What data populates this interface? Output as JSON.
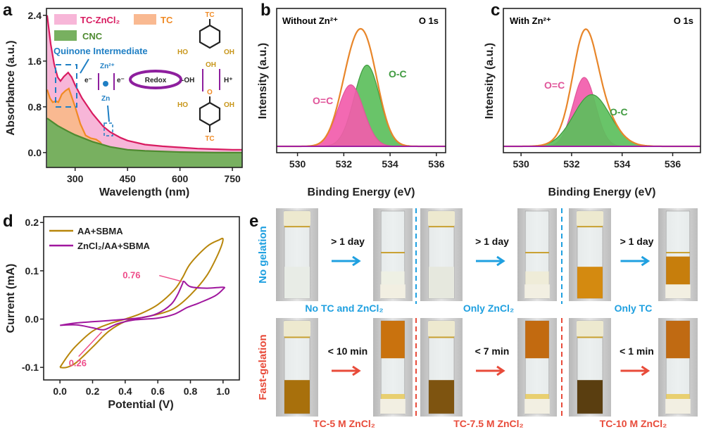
{
  "panel_labels": [
    "a",
    "b",
    "c",
    "d",
    "e"
  ],
  "chart_data": [
    {
      "panel": "a",
      "type": "area",
      "xlabel": "Wavelength (nm)",
      "ylabel": "Absorbance (a.u.)",
      "xlim": [
        218,
        778
      ],
      "ylim": [
        -0.26,
        2.52
      ],
      "xticks": [
        300,
        450,
        600,
        750
      ],
      "yticks": [
        0.0,
        0.8,
        1.6,
        2.4
      ],
      "ytick_labels": [
        "0.0",
        "0.8",
        "1.6",
        "2.4"
      ],
      "legend": "top-left",
      "series": [
        {
          "name": "TC-ZnCl₂",
          "line_color": "#d81b60",
          "fill_color": "#f7b6d8",
          "x": [
            220,
            230,
            240,
            250,
            258,
            268,
            280,
            290,
            300,
            320,
            350,
            380,
            400,
            430,
            450,
            500,
            550,
            600,
            650,
            700,
            750,
            778
          ],
          "y": [
            2.4,
            1.9,
            1.55,
            1.32,
            1.25,
            1.33,
            1.4,
            1.32,
            1.18,
            0.95,
            0.68,
            0.46,
            0.36,
            0.26,
            0.21,
            0.14,
            0.11,
            0.09,
            0.07,
            0.06,
            0.05,
            0.05
          ]
        },
        {
          "name": "TC",
          "line_color": "#f08a24",
          "fill_color": "#f9b991",
          "x": [
            220,
            228,
            236,
            245,
            252,
            262,
            272,
            282,
            290,
            300,
            315,
            330,
            345,
            360,
            372,
            385,
            395
          ],
          "y": [
            1.1,
            0.95,
            0.88,
            0.9,
            0.88,
            1.02,
            1.08,
            1.12,
            0.98,
            0.8,
            0.5,
            0.3,
            0.25,
            0.23,
            0.18,
            0.06,
            0.0
          ]
        },
        {
          "name": "CNC",
          "line_color": "#4e8a30",
          "fill_color": "#78b060",
          "x": [
            220,
            250,
            280,
            300,
            350,
            400,
            450,
            500,
            600,
            700,
            778
          ],
          "y": [
            0.6,
            0.47,
            0.37,
            0.31,
            0.19,
            0.1,
            0.05,
            0.03,
            0.01,
            0.0,
            0.0
          ]
        }
      ],
      "annotations": {
        "quinone": "Quinone Intermediate",
        "quinone_color": "#1f7fc4",
        "inset": {
          "tc_top": "TC",
          "ho_top": "HO",
          "oh_top_r": "OH",
          "oh_top_b": "OH",
          "e1": "e⁻",
          "zn2": "Zn²⁺",
          "zn": "Zn",
          "e2": "e⁻",
          "redox": "Redox",
          "oh": "-OH",
          "h": "H⁺",
          "o": "O",
          "ho_bot": "HO",
          "oh_bot": "OH",
          "tc_bot": "TC"
        }
      }
    },
    {
      "panel": "b",
      "type": "area",
      "title": "Without Zn²⁺",
      "corner_label": "O 1s",
      "xlabel": "Binding Energy (eV)",
      "ylabel": "Intensity (a.u.)",
      "xlim": [
        529.1,
        536.4
      ],
      "xticks": [
        530,
        532,
        534,
        536
      ],
      "peaks": [
        {
          "name": "O=C",
          "center_eV": 532.3,
          "relative_height": 0.5,
          "fwhm_eV": 1.3,
          "line_color": "#e0559a",
          "fill_color": "#f25cab"
        },
        {
          "name": "O-C",
          "center_eV": 533.0,
          "relative_height": 0.66,
          "fwhm_eV": 1.3,
          "line_color": "#3f9a3f",
          "fill_color": "#5cbf5c"
        }
      ],
      "envelope_color": "#e8862a",
      "baseline_color": "#a020a0"
    },
    {
      "panel": "c",
      "type": "area",
      "title": "With Zn²⁺",
      "corner_label": "O 1s",
      "xlabel": "Binding Energy (eV)",
      "ylabel": "Intensity (a.u.)",
      "xlim": [
        529.3,
        537.1
      ],
      "xticks": [
        530,
        532,
        534,
        536
      ],
      "peaks": [
        {
          "name": "O=C",
          "center_eV": 532.5,
          "relative_height": 0.56,
          "fwhm_eV": 1.05,
          "line_color": "#e0559a",
          "fill_color": "#f25cab"
        },
        {
          "name": "O-C",
          "center_eV": 532.8,
          "relative_height": 0.42,
          "fwhm_eV": 1.7,
          "line_color": "#3f9a3f",
          "fill_color": "#5cbf5c"
        }
      ],
      "envelope_color": "#e8862a",
      "baseline_color": "#a020a0"
    },
    {
      "panel": "d",
      "type": "line",
      "xlabel": "Potential (V)",
      "ylabel": "Current (mA)",
      "xlim": [
        -0.1,
        1.1
      ],
      "ylim": [
        -0.126,
        0.212
      ],
      "xticks": [
        0.0,
        0.2,
        0.4,
        0.6,
        0.8,
        1.0
      ],
      "xtick_labels": [
        "0.0",
        "0.2",
        "0.4",
        "0.6",
        "0.8",
        "1.0"
      ],
      "yticks": [
        -0.1,
        0.0,
        0.1,
        0.2
      ],
      "ytick_labels": [
        "-0.1",
        "0.0",
        "0.1",
        "0.2"
      ],
      "legend": "top-left",
      "series": [
        {
          "name": "AA+SBMA",
          "color": "#b8860b",
          "x": [
            0.0,
            0.05,
            0.1,
            0.2,
            0.3,
            0.4,
            0.5,
            0.6,
            0.7,
            0.75,
            0.8,
            0.9,
            0.97,
            1.0,
            0.97,
            0.9,
            0.8,
            0.7,
            0.6,
            0.5,
            0.4,
            0.3,
            0.2,
            0.1,
            0.04,
            0.0
          ],
          "y": [
            -0.1,
            -0.075,
            -0.055,
            -0.025,
            -0.01,
            0.0,
            0.012,
            0.03,
            0.06,
            0.085,
            0.115,
            0.15,
            0.163,
            0.165,
            0.135,
            0.09,
            0.05,
            0.022,
            0.01,
            0.003,
            -0.005,
            -0.025,
            -0.058,
            -0.09,
            -0.1,
            -0.1
          ]
        },
        {
          "name": "ZnCl₂/AA+SBMA",
          "color": "#a0179e",
          "x": [
            0.0,
            0.1,
            0.3,
            0.5,
            0.6,
            0.68,
            0.72,
            0.75,
            0.76,
            0.8,
            0.9,
            1.0,
            1.0,
            0.95,
            0.85,
            0.78,
            0.7,
            0.6,
            0.45,
            0.35,
            0.27,
            0.2,
            0.1,
            0.0
          ],
          "y": [
            -0.013,
            -0.008,
            -0.003,
            0.003,
            0.012,
            0.03,
            0.05,
            0.072,
            0.078,
            0.067,
            0.064,
            0.066,
            0.062,
            0.048,
            0.033,
            0.024,
            0.01,
            0.002,
            -0.002,
            -0.01,
            -0.022,
            -0.018,
            -0.012,
            -0.013
          ]
        }
      ],
      "annotations": [
        {
          "text": "0.76",
          "x": 0.76,
          "y": 0.078,
          "color": "#ee4d8a"
        },
        {
          "text": "0.26",
          "x": 0.27,
          "y": -0.022,
          "color": "#ee4d8a"
        }
      ]
    }
  ],
  "panel_e": {
    "rows": [
      {
        "label": "No gelation",
        "color": "#1fa0e0",
        "groups": [
          {
            "caption": "No TC and ZnCl₂",
            "time": "> 1 day",
            "before_liquid": "#e8ece6",
            "after_liquid": "#eef0e4",
            "after_gel_top": false
          },
          {
            "caption": "Only ZnCl₂",
            "time": "> 1 day",
            "before_liquid": "#e6e8de",
            "after_liquid": "#efecd8",
            "after_gel_top": false
          },
          {
            "caption": "Only TC",
            "time": "> 1 day",
            "before_liquid": "#d48a10",
            "after_liquid": "#c77e0c",
            "after_gel_top": false
          }
        ]
      },
      {
        "label": "Fast-gelation",
        "color": "#e84b3a",
        "groups": [
          {
            "caption": "TC-5 M ZnCl₂",
            "time": "< 10 min",
            "before_liquid": "#a8700c",
            "after_liquid": "#c9720e",
            "after_gel_top": true
          },
          {
            "caption": "TC-7.5 M ZnCl₂",
            "time": "< 7 min",
            "before_liquid": "#7e5410",
            "after_liquid": "#c26a10",
            "after_gel_top": true
          },
          {
            "caption": "TC-10 M ZnCl₂",
            "time": "< 1 min",
            "before_liquid": "#5a3e10",
            "after_liquid": "#c06a12",
            "after_gel_top": true
          }
        ]
      }
    ]
  }
}
